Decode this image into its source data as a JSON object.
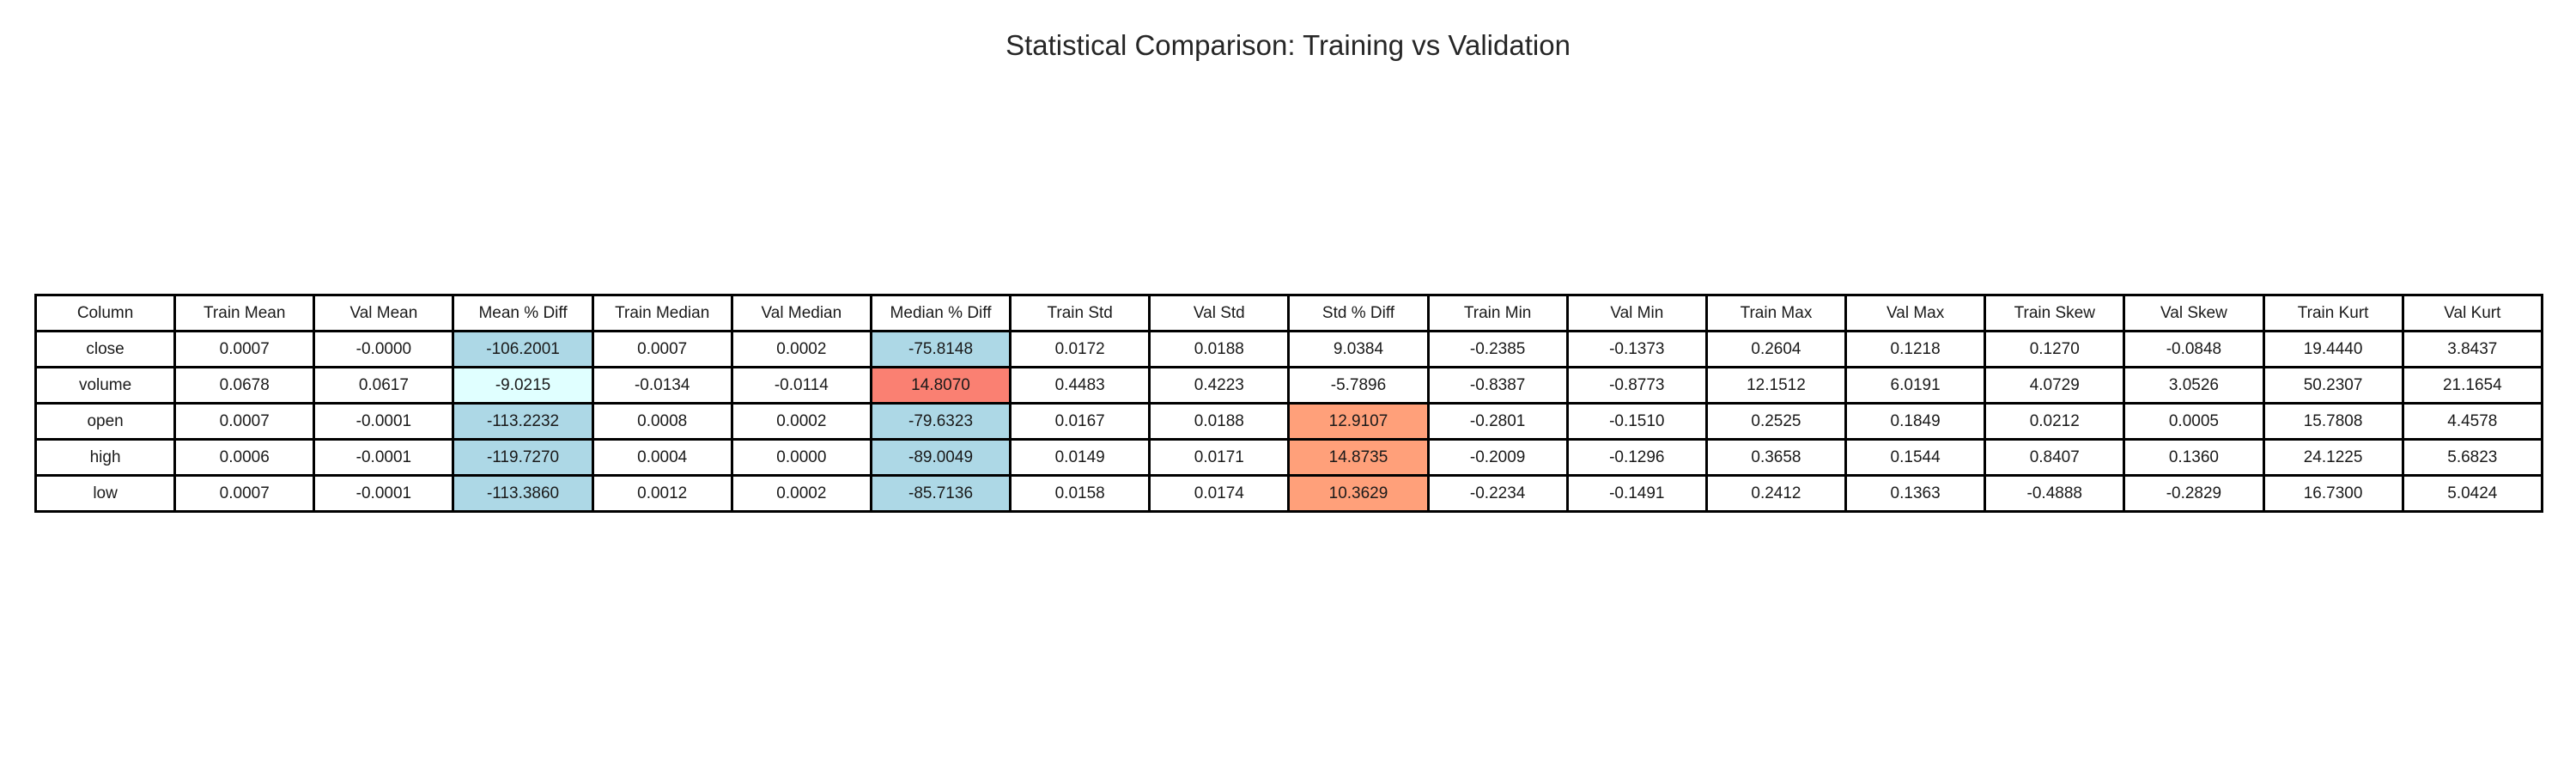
{
  "figure": {
    "title": "Statistical Comparison: Training vs Validation"
  },
  "palette": {
    "strong_negative": "#add8e6",
    "mild_negative": "#e0ffff",
    "strong_positive": "#fa8072",
    "moderate_positive": "#ffa07a",
    "neutral": "#ffffff"
  },
  "chart_data": {
    "type": "table",
    "title": "Statistical Comparison: Training vs Validation",
    "columns": [
      "Column",
      "Train Mean",
      "Val Mean",
      "Mean % Diff",
      "Train Median",
      "Val Median",
      "Median % Diff",
      "Train Std",
      "Val Std",
      "Std % Diff",
      "Train Min",
      "Val Min",
      "Train Max",
      "Val Max",
      "Train Skew",
      "Val Skew",
      "Train Kurt",
      "Val Kurt"
    ],
    "rows": [
      [
        "close",
        "0.0007",
        "-0.0000",
        "-106.2001",
        "0.0007",
        "0.0002",
        "-75.8148",
        "0.0172",
        "0.0188",
        "9.0384",
        "-0.2385",
        "-0.1373",
        "0.2604",
        "0.1218",
        "0.1270",
        "-0.0848",
        "19.4440",
        "3.8437"
      ],
      [
        "volume",
        "0.0678",
        "0.0617",
        "-9.0215",
        "-0.0134",
        "-0.0114",
        "14.8070",
        "0.4483",
        "0.4223",
        "-5.7896",
        "-0.8387",
        "-0.8773",
        "12.1512",
        "6.0191",
        "4.0729",
        "3.0526",
        "50.2307",
        "21.1654"
      ],
      [
        "open",
        "0.0007",
        "-0.0001",
        "-113.2232",
        "0.0008",
        "0.0002",
        "-79.6323",
        "0.0167",
        "0.0188",
        "12.9107",
        "-0.2801",
        "-0.1510",
        "0.2525",
        "0.1849",
        "0.0212",
        "0.0005",
        "15.7808",
        "4.4578"
      ],
      [
        "high",
        "0.0006",
        "-0.0001",
        "-119.7270",
        "0.0004",
        "0.0000",
        "-89.0049",
        "0.0149",
        "0.0171",
        "14.8735",
        "-0.2009",
        "-0.1296",
        "0.3658",
        "0.1544",
        "0.8407",
        "0.1360",
        "24.1225",
        "5.6823"
      ],
      [
        "low",
        "0.0007",
        "-0.0001",
        "-113.3860",
        "0.0012",
        "0.0002",
        "-85.7136",
        "0.0158",
        "0.0174",
        "10.3629",
        "-0.2234",
        "-0.1491",
        "0.2412",
        "0.1363",
        "-0.4888",
        "-0.2829",
        "16.7300",
        "5.0424"
      ]
    ],
    "highlighted_cells": [
      {
        "row": 0,
        "col": 3,
        "color": "#add8e6"
      },
      {
        "row": 0,
        "col": 6,
        "color": "#add8e6"
      },
      {
        "row": 1,
        "col": 3,
        "color": "#e0ffff"
      },
      {
        "row": 1,
        "col": 6,
        "color": "#fa8072"
      },
      {
        "row": 2,
        "col": 3,
        "color": "#add8e6"
      },
      {
        "row": 2,
        "col": 6,
        "color": "#add8e6"
      },
      {
        "row": 2,
        "col": 9,
        "color": "#ffa07a"
      },
      {
        "row": 3,
        "col": 3,
        "color": "#add8e6"
      },
      {
        "row": 3,
        "col": 6,
        "color": "#add8e6"
      },
      {
        "row": 3,
        "col": 9,
        "color": "#ffa07a"
      },
      {
        "row": 4,
        "col": 3,
        "color": "#add8e6"
      },
      {
        "row": 4,
        "col": 6,
        "color": "#add8e6"
      },
      {
        "row": 4,
        "col": 9,
        "color": "#ffa07a"
      }
    ]
  }
}
